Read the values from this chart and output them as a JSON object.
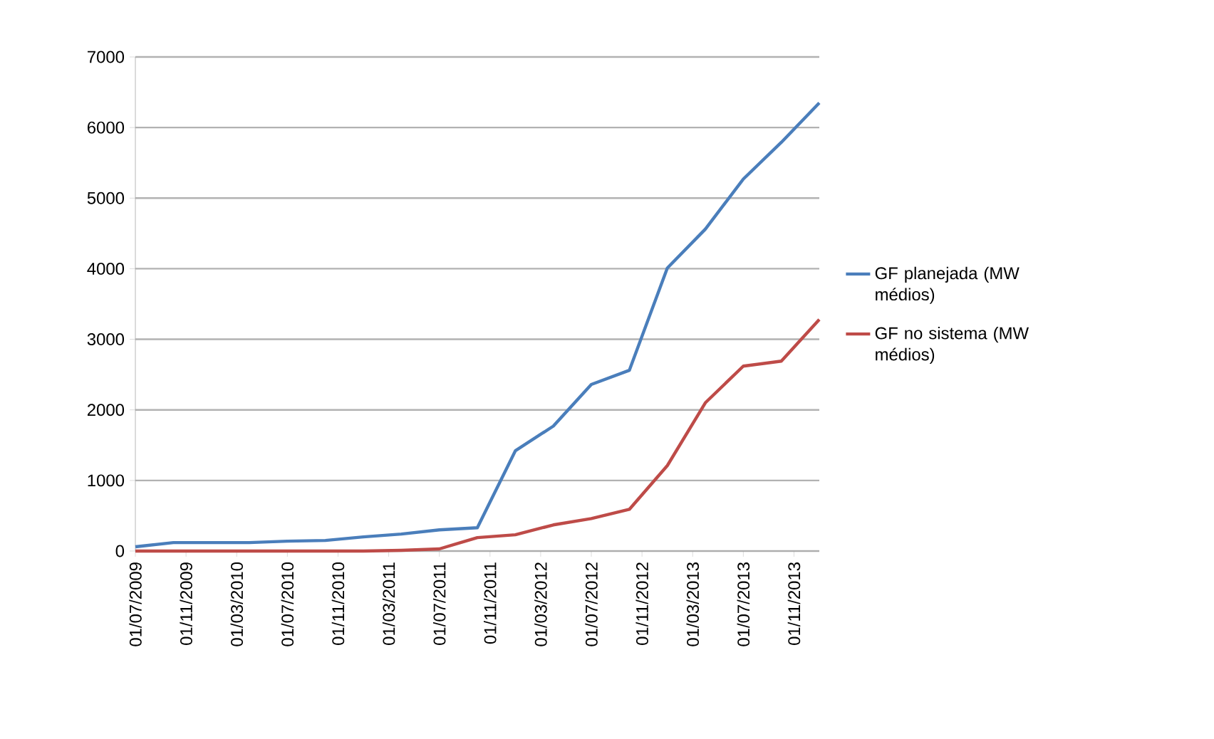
{
  "chart_data": {
    "type": "line",
    "x": [
      "2009-07",
      "2009-10",
      "2010-01",
      "2010-04",
      "2010-07",
      "2010-10",
      "2011-01",
      "2011-04",
      "2011-07",
      "2011-10",
      "2012-01",
      "2012-04",
      "2012-07",
      "2012-10",
      "2013-01",
      "2013-04",
      "2013-07",
      "2013-10",
      "2014-01"
    ],
    "series": [
      {
        "name": "GF planejada (MW médios)",
        "color": "#4a7ebb",
        "values": [
          60,
          120,
          120,
          120,
          140,
          150,
          200,
          240,
          300,
          330,
          1420,
          1770,
          2360,
          2560,
          4010,
          4560,
          5270,
          5790,
          6350
        ]
      },
      {
        "name": "GF no sistema (MW médios)",
        "color": "#be4b48",
        "values": [
          0,
          0,
          0,
          0,
          0,
          0,
          0,
          10,
          30,
          190,
          230,
          370,
          460,
          590,
          1210,
          2100,
          2620,
          2690,
          3280
        ]
      }
    ],
    "xlim": [
      "2009-07",
      "2014-01"
    ],
    "xticks": [
      {
        "value": "2009-07-01",
        "label": "01/07/2009"
      },
      {
        "value": "2009-11-01",
        "label": "01/11/2009"
      },
      {
        "value": "2010-03-01",
        "label": "01/03/2010"
      },
      {
        "value": "2010-07-01",
        "label": "01/07/2010"
      },
      {
        "value": "2010-11-01",
        "label": "01/11/2010"
      },
      {
        "value": "2011-03-01",
        "label": "01/03/2011"
      },
      {
        "value": "2011-07-01",
        "label": "01/07/2011"
      },
      {
        "value": "2011-11-01",
        "label": "01/11/2011"
      },
      {
        "value": "2012-03-01",
        "label": "01/03/2012"
      },
      {
        "value": "2012-07-01",
        "label": "01/07/2012"
      },
      {
        "value": "2012-11-01",
        "label": "01/11/2012"
      },
      {
        "value": "2013-03-01",
        "label": "01/03/2013"
      },
      {
        "value": "2013-07-01",
        "label": "01/07/2013"
      },
      {
        "value": "2013-11-01",
        "label": "01/11/2013"
      }
    ],
    "ylim": [
      0,
      7000
    ],
    "yticks": [
      0,
      1000,
      2000,
      3000,
      4000,
      5000,
      6000,
      7000
    ],
    "grid": "y",
    "legend": "right",
    "marker": "none",
    "line_style": "solid"
  }
}
